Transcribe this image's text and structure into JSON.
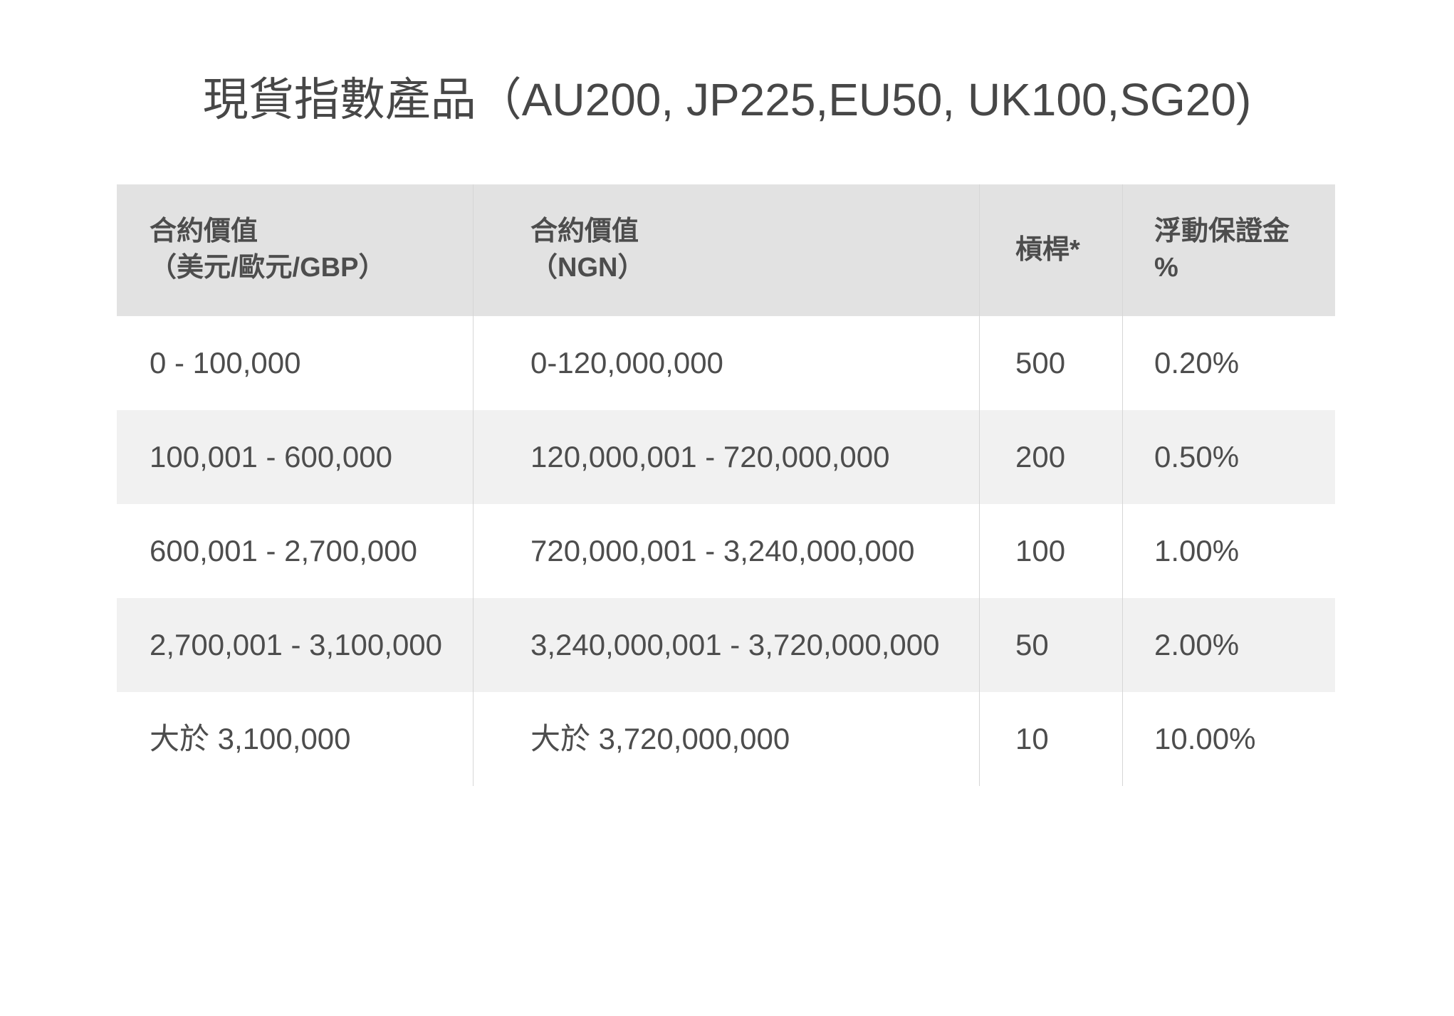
{
  "title": "現貨指數產品（AU200, JP225,EU50, UK100,SG20)",
  "table": {
    "header": [
      {
        "line1": "合約價值",
        "line2": "（美元/歐元/GBP）"
      },
      {
        "line1": "合約價值",
        "line2": "（NGN）"
      },
      {
        "line1": "槓桿*",
        "line2": ""
      },
      {
        "line1": "浮動保證金",
        "line2": "%"
      }
    ],
    "rows": [
      [
        "0 - 100,000",
        "0-120,000,000",
        "500",
        "0.20%"
      ],
      [
        "100,001 - 600,000",
        "120,000,001 - 720,000,000",
        "200",
        "0.50%"
      ],
      [
        "600,001 - 2,700,000",
        "720,000,001 - 3,240,000,000",
        "100",
        "1.00%"
      ],
      [
        "2,700,001 - 3,100,000",
        "3,240,000,001 - 3,720,000,000",
        "50",
        "2.00%"
      ],
      [
        "大於 3,100,000",
        "大於 3,720,000,000",
        "10",
        "10.00%"
      ]
    ]
  },
  "chart_data": {
    "type": "table",
    "title": "現貨指數產品（AU200, JP225,EU50, UK100,SG20)",
    "columns": [
      "合約價值（美元/歐元/GBP）",
      "合約價值（NGN）",
      "槓桿*",
      "浮動保證金 %"
    ],
    "rows": [
      {
        "contract_value_usd_eur_gbp": "0 - 100,000",
        "contract_value_ngn": "0-120,000,000",
        "leverage": 500,
        "floating_margin_pct": "0.20%"
      },
      {
        "contract_value_usd_eur_gbp": "100,001 - 600,000",
        "contract_value_ngn": "120,000,001 - 720,000,000",
        "leverage": 200,
        "floating_margin_pct": "0.50%"
      },
      {
        "contract_value_usd_eur_gbp": "600,001 - 2,700,000",
        "contract_value_ngn": "720,000,001 - 3,240,000,000",
        "leverage": 100,
        "floating_margin_pct": "1.00%"
      },
      {
        "contract_value_usd_eur_gbp": "2,700,001 - 3,100,000",
        "contract_value_ngn": "3,240,000,001 - 3,720,000,000",
        "leverage": 50,
        "floating_margin_pct": "2.00%"
      },
      {
        "contract_value_usd_eur_gbp": "大於 3,100,000",
        "contract_value_ngn": "大於 3,720,000,000",
        "leverage": 10,
        "floating_margin_pct": "10.00%"
      }
    ]
  },
  "colors": {
    "header_bg": "#e2e2e2",
    "row_alt_bg": "#f1f1f1",
    "divider": "#d6d6d6",
    "text": "#4d4d4d",
    "title_text": "#474747"
  }
}
